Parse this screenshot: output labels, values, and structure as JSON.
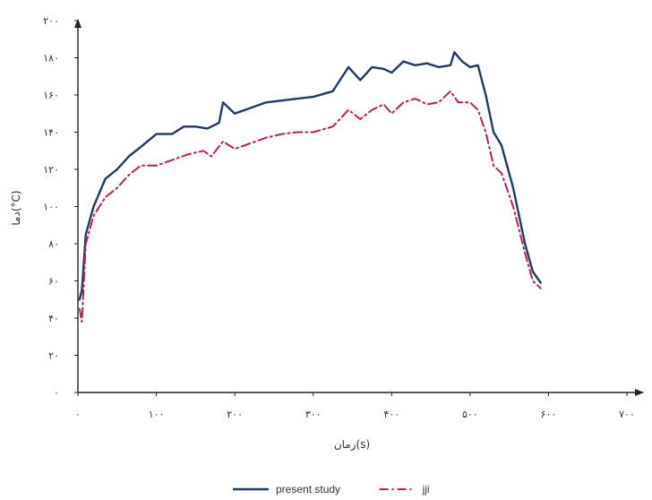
{
  "chart_data": {
    "type": "line",
    "title": "",
    "xlabel": "زمان(s)",
    "ylabel": "دما(°C)",
    "xlim": [
      0,
      700
    ],
    "ylim": [
      0,
      200
    ],
    "x_ticks": [
      0,
      100,
      200,
      300,
      400,
      500,
      600,
      700
    ],
    "y_ticks": [
      0,
      20,
      40,
      60,
      80,
      100,
      120,
      140,
      160,
      180,
      200
    ],
    "x_tick_labels": [
      "۰",
      "۱۰۰",
      "۲۰۰",
      "۳۰۰",
      "۴۰۰",
      "۵۰۰",
      "۶۰۰",
      "۷۰۰"
    ],
    "y_tick_labels": [
      "۰",
      "۲۰",
      "۴۰",
      "۶۰",
      "۸۰",
      "۱۰۰",
      "۱۲۰",
      "۱۴۰",
      "۱۶۰",
      "۱۸۰",
      "۲۰۰"
    ],
    "grid": false,
    "legend_position": "bottom-center",
    "series": [
      {
        "name": "present study",
        "color": "#1f3a64",
        "dash": "solid",
        "points": [
          [
            2,
            50
          ],
          [
            5,
            55
          ],
          [
            10,
            85
          ],
          [
            20,
            100
          ],
          [
            35,
            115
          ],
          [
            50,
            120
          ],
          [
            65,
            127
          ],
          [
            80,
            132
          ],
          [
            100,
            139
          ],
          [
            120,
            139
          ],
          [
            135,
            143
          ],
          [
            150,
            143
          ],
          [
            165,
            142
          ],
          [
            180,
            145
          ],
          [
            185,
            156
          ],
          [
            200,
            150
          ],
          [
            220,
            153
          ],
          [
            240,
            156
          ],
          [
            260,
            157
          ],
          [
            280,
            158
          ],
          [
            300,
            159
          ],
          [
            325,
            162
          ],
          [
            345,
            175
          ],
          [
            360,
            168
          ],
          [
            375,
            175
          ],
          [
            390,
            174
          ],
          [
            400,
            172
          ],
          [
            415,
            178
          ],
          [
            430,
            176
          ],
          [
            445,
            177
          ],
          [
            460,
            175
          ],
          [
            475,
            176
          ],
          [
            480,
            183
          ],
          [
            490,
            178
          ],
          [
            500,
            175
          ],
          [
            510,
            176
          ],
          [
            520,
            160
          ],
          [
            530,
            140
          ],
          [
            540,
            133
          ],
          [
            555,
            110
          ],
          [
            570,
            80
          ],
          [
            580,
            65
          ],
          [
            590,
            59
          ]
        ]
      },
      {
        "name": "jji",
        "color": "#b5245f",
        "dash": "dashdot",
        "points": [
          [
            2,
            45
          ],
          [
            5,
            38
          ],
          [
            10,
            80
          ],
          [
            20,
            95
          ],
          [
            35,
            105
          ],
          [
            50,
            110
          ],
          [
            65,
            117
          ],
          [
            80,
            122
          ],
          [
            100,
            122
          ],
          [
            120,
            125
          ],
          [
            140,
            128
          ],
          [
            160,
            130
          ],
          [
            170,
            127
          ],
          [
            185,
            135
          ],
          [
            200,
            131
          ],
          [
            220,
            134
          ],
          [
            240,
            137
          ],
          [
            260,
            139
          ],
          [
            280,
            140
          ],
          [
            300,
            140
          ],
          [
            325,
            143
          ],
          [
            345,
            152
          ],
          [
            360,
            147
          ],
          [
            375,
            152
          ],
          [
            390,
            155
          ],
          [
            400,
            150
          ],
          [
            415,
            156
          ],
          [
            430,
            158
          ],
          [
            445,
            155
          ],
          [
            460,
            156
          ],
          [
            475,
            162
          ],
          [
            485,
            156
          ],
          [
            500,
            156
          ],
          [
            510,
            152
          ],
          [
            520,
            140
          ],
          [
            530,
            122
          ],
          [
            540,
            118
          ],
          [
            555,
            100
          ],
          [
            570,
            75
          ],
          [
            580,
            60
          ],
          [
            590,
            56
          ]
        ]
      }
    ]
  }
}
